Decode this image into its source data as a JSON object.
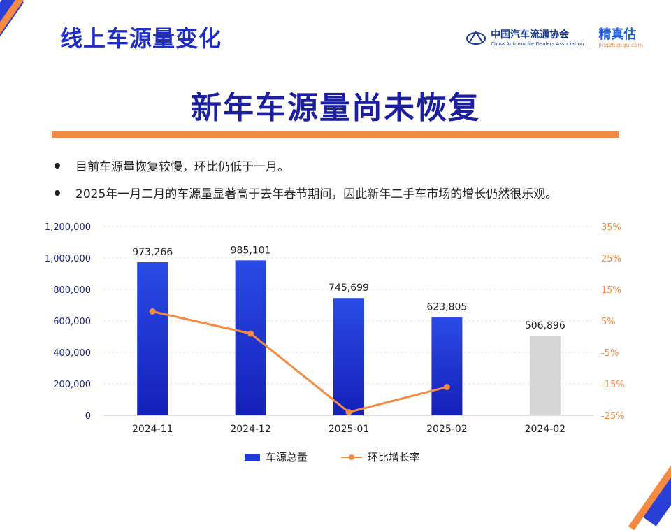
{
  "header": {
    "section_title": "线上车源量变化",
    "association_cn": "中国汽车流通协会",
    "association_en": "China Automobile Dealers Association",
    "brand_cn": "精真估",
    "brand_en": "jingzhengu.com"
  },
  "headline": "新年车源量尚未恢复",
  "bullets": [
    "目前车源量恢复较慢，环比仍低于一月。",
    "2025年一月二月的车源量显著高于去年春节期间，因此新年二手车市场的增长仍然很乐观。"
  ],
  "colors": {
    "bar": "#1f3ad6",
    "bar_gray": "#d6d6d6",
    "line": "#f58a42",
    "accent": "#1f2ec4"
  },
  "chart_data": {
    "type": "bar",
    "categories": [
      "2024-11",
      "2024-12",
      "2025-01",
      "2025-02",
      "2024-02"
    ],
    "series": [
      {
        "name": "车源总量",
        "type": "bar",
        "axis": "left",
        "values": [
          973266,
          985101,
          745699,
          623805,
          506896
        ],
        "labels": [
          "973,266",
          "985,101",
          "745,699",
          "623,805",
          "506,896"
        ],
        "colors": [
          "#1f3ad6",
          "#1f3ad6",
          "#1f3ad6",
          "#1f3ad6",
          "#d6d6d6"
        ]
      },
      {
        "name": "环比增长率",
        "type": "line",
        "axis": "right",
        "values": [
          8,
          1,
          -24,
          -16,
          null
        ]
      }
    ],
    "ylim_left": [
      0,
      1200000
    ],
    "yticks_left": [
      "0",
      "200,000",
      "400,000",
      "600,000",
      "800,000",
      "1,000,000",
      "1,200,000"
    ],
    "ylim_right": [
      -25,
      35
    ],
    "yticks_right": [
      "-25%",
      "-15%",
      "-5%",
      "5%",
      "15%",
      "25%",
      "35%"
    ],
    "grid": true,
    "legend": "bottom"
  }
}
